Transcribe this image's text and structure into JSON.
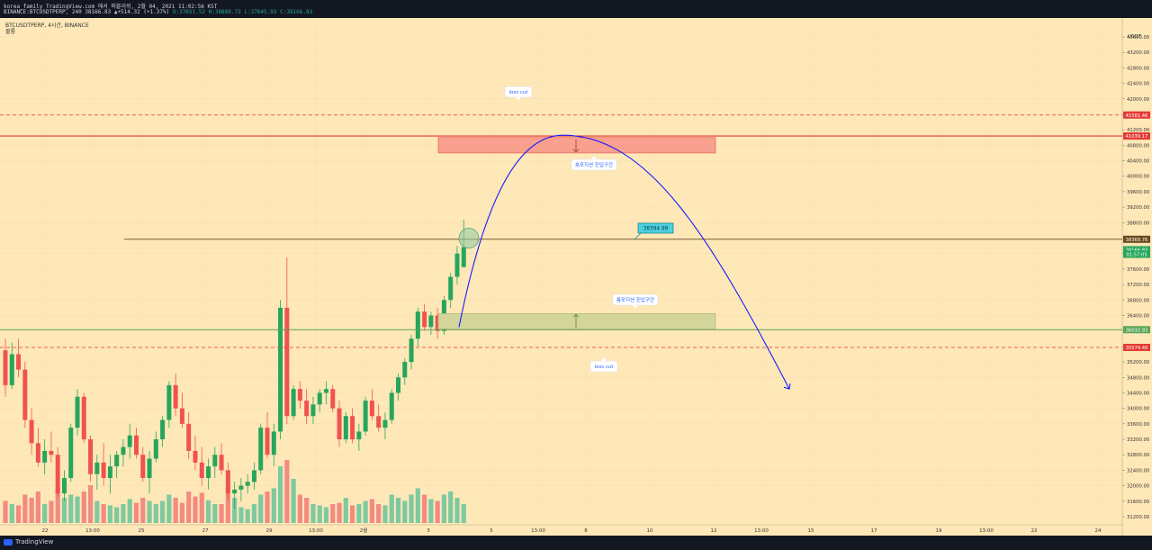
{
  "header": {
    "line1": "korea_family TradingView.com 에서 퍼블리쉬, 2월 04, 2021 11:02:56 KST",
    "symbol": "BINANCE:BTCUSDTPERP, 240 38166.83 ▲+514.32 (+1.37%)",
    "o": "O:37651.52",
    "h": "H:38880.73",
    "l": "L:37645.93",
    "c": "C:38166.83"
  },
  "chart_legend": {
    "title": "BTCUSDTPERP, 4시간, BINANCE",
    "subtitle": "볼륨"
  },
  "brand": "TradingView",
  "colors": {
    "background": "#ffe8b8",
    "up": "#26a65b",
    "down": "#ef5350",
    "vol_up": "#7fc9a0",
    "vol_down": "#f28b82",
    "red_line": "#e53935",
    "arc": "#1a1aff",
    "green_line": "#5aa55a",
    "brown_line": "#6b4a1e"
  },
  "annotations": {
    "loss_cut_top": "loss cut",
    "loss_cut_bottom": "loss cut",
    "zone_top_label": "숏포지션 진입구간",
    "zone_bottom_label": "롱포지션 진입구간",
    "price_callout": "38394.99"
  },
  "chart_data": {
    "type": "candlestick",
    "title": "BTCUSDTPERP, 4시간, BINANCE",
    "y_axis": {
      "unit": "USDT",
      "range": [
        31000,
        44100
      ],
      "ticks": [
        "43600.00",
        "43200.00",
        "42800.00",
        "42400.00",
        "42000.00",
        "41600.00",
        "41200.00",
        "40800.00",
        "40400.00",
        "40000.00",
        "39600.00",
        "39200.00",
        "38800.00",
        "38400.00",
        "38000.00",
        "37600.00",
        "37200.00",
        "36800.00",
        "36400.00",
        "36000.00",
        "35600.00",
        "35200.00",
        "34800.00",
        "34400.00",
        "34000.00",
        "33600.00",
        "33200.00",
        "32800.00",
        "32400.00",
        "32000.00",
        "31600.00",
        "31200.00"
      ]
    },
    "x_axis": {
      "ticks": [
        "22",
        "13:00",
        "25",
        "27",
        "29",
        "13:00",
        "2월",
        "3",
        "5",
        "13:00",
        "8",
        "10",
        "12",
        "13:00",
        "15",
        "17",
        "19",
        "13:00",
        "22",
        "24"
      ]
    },
    "price_labels": [
      {
        "value": "41581.46",
        "color": "#e53935"
      },
      {
        "value": "41039.17",
        "color": "#e53935"
      },
      {
        "value": "38369.76",
        "color": "#6b4a1e"
      },
      {
        "value": "38166.83",
        "color": "#26a65b"
      },
      {
        "value": "01:57:05",
        "color": "#26a65b"
      },
      {
        "value": "36032.93",
        "color": "#5aa55a"
      },
      {
        "value": "35574.40",
        "color": "#e53935"
      }
    ],
    "levels": {
      "upper_dashed": 41581.46,
      "upper_solid": 41039.17,
      "brown": 38369.76,
      "green": 36032.93,
      "lower_dashed": 35574.4
    },
    "candles": [
      [
        35500,
        35800,
        34300,
        34600
      ],
      [
        34600,
        35700,
        34500,
        35400
      ],
      [
        35400,
        35800,
        34800,
        35000
      ],
      [
        35000,
        35200,
        33500,
        33700
      ],
      [
        33700,
        34000,
        32800,
        33100
      ],
      [
        33100,
        33500,
        32500,
        32600
      ],
      [
        32600,
        33200,
        32300,
        32900
      ],
      [
        32900,
        33400,
        32600,
        32800
      ],
      [
        32800,
        33000,
        31700,
        31800
      ],
      [
        31800,
        32400,
        31600,
        32200
      ],
      [
        32200,
        33600,
        32100,
        33500
      ],
      [
        33500,
        34500,
        33300,
        34300
      ],
      [
        34300,
        34400,
        33100,
        33200
      ],
      [
        33200,
        33300,
        32100,
        32300
      ],
      [
        32300,
        32800,
        31900,
        32600
      ],
      [
        32600,
        33100,
        32000,
        32200
      ],
      [
        32200,
        32800,
        31800,
        32500
      ],
      [
        32500,
        32900,
        32200,
        32800
      ],
      [
        32800,
        33200,
        32500,
        33000
      ],
      [
        33000,
        33600,
        32700,
        33300
      ],
      [
        33300,
        33500,
        32700,
        32800
      ],
      [
        32800,
        33000,
        32100,
        32200
      ],
      [
        32200,
        32900,
        31800,
        32700
      ],
      [
        32700,
        33400,
        32600,
        33200
      ],
      [
        33200,
        33800,
        33000,
        33700
      ],
      [
        33700,
        34700,
        33500,
        34600
      ],
      [
        34600,
        34900,
        33800,
        34000
      ],
      [
        34000,
        34400,
        33500,
        33600
      ],
      [
        33600,
        33900,
        32700,
        32900
      ],
      [
        32900,
        33300,
        32400,
        32600
      ],
      [
        32600,
        33000,
        32000,
        32200
      ],
      [
        32200,
        32700,
        31900,
        32500
      ],
      [
        32500,
        33000,
        32200,
        32800
      ],
      [
        32800,
        33100,
        32300,
        32400
      ],
      [
        32400,
        32600,
        31600,
        31800
      ],
      [
        31800,
        32100,
        31400,
        31900
      ],
      [
        31900,
        32200,
        31600,
        32000
      ],
      [
        32000,
        32300,
        31800,
        32100
      ],
      [
        32100,
        32600,
        31900,
        32400
      ],
      [
        32400,
        33600,
        32300,
        33500
      ],
      [
        33500,
        33900,
        32700,
        32800
      ],
      [
        32800,
        33600,
        32500,
        33400
      ],
      [
        33400,
        36800,
        33200,
        36600
      ],
      [
        36600,
        37900,
        33600,
        33800
      ],
      [
        33800,
        34600,
        33700,
        34500
      ],
      [
        34500,
        34700,
        34000,
        34200
      ],
      [
        34200,
        34500,
        33600,
        33800
      ],
      [
        33800,
        34300,
        33600,
        34100
      ],
      [
        34100,
        34500,
        33900,
        34400
      ],
      [
        34400,
        34700,
        34100,
        34500
      ],
      [
        34500,
        34600,
        33900,
        34000
      ],
      [
        34000,
        34200,
        33000,
        33200
      ],
      [
        33200,
        33900,
        33100,
        33800
      ],
      [
        33800,
        34000,
        33100,
        33200
      ],
      [
        33200,
        33600,
        32900,
        33400
      ],
      [
        33400,
        34300,
        33300,
        34200
      ],
      [
        34200,
        34500,
        33700,
        33800
      ],
      [
        33800,
        34100,
        33400,
        33500
      ],
      [
        33500,
        33900,
        33200,
        33700
      ],
      [
        33700,
        34500,
        33600,
        34400
      ],
      [
        34400,
        34900,
        34200,
        34800
      ],
      [
        34800,
        35300,
        34600,
        35200
      ],
      [
        35200,
        35900,
        35000,
        35800
      ],
      [
        35800,
        36600,
        35600,
        36500
      ],
      [
        36500,
        36700,
        36000,
        36100
      ],
      [
        36100,
        36500,
        35900,
        36400
      ],
      [
        36400,
        36600,
        35800,
        36000
      ],
      [
        36000,
        36900,
        35900,
        36800
      ],
      [
        36800,
        37500,
        36600,
        37400
      ],
      [
        37400,
        38200,
        37200,
        38000
      ],
      [
        37651,
        38881,
        37646,
        38167
      ]
    ],
    "volume_relative": [
      0.35,
      0.3,
      0.28,
      0.45,
      0.4,
      0.5,
      0.3,
      0.35,
      0.55,
      0.4,
      0.45,
      0.42,
      0.5,
      0.6,
      0.35,
      0.3,
      0.28,
      0.25,
      0.3,
      0.38,
      0.32,
      0.4,
      0.35,
      0.3,
      0.35,
      0.45,
      0.4,
      0.32,
      0.5,
      0.42,
      0.48,
      0.36,
      0.3,
      0.3,
      0.55,
      0.4,
      0.25,
      0.22,
      0.3,
      0.45,
      0.5,
      0.55,
      0.9,
      1.0,
      0.7,
      0.45,
      0.4,
      0.3,
      0.28,
      0.25,
      0.3,
      0.32,
      0.4,
      0.28,
      0.3,
      0.35,
      0.38,
      0.3,
      0.28,
      0.45,
      0.4,
      0.35,
      0.45,
      0.55,
      0.45,
      0.38,
      0.35,
      0.45,
      0.5,
      0.4,
      0.3
    ],
    "zones": [
      {
        "label": "숏포지션 진입구간",
        "from": 40600,
        "to": 41000,
        "color": "#f9a08f"
      },
      {
        "label": "롱포지션 진입구간",
        "from": 36050,
        "to": 36450,
        "color": "#d3d59a"
      }
    ]
  }
}
